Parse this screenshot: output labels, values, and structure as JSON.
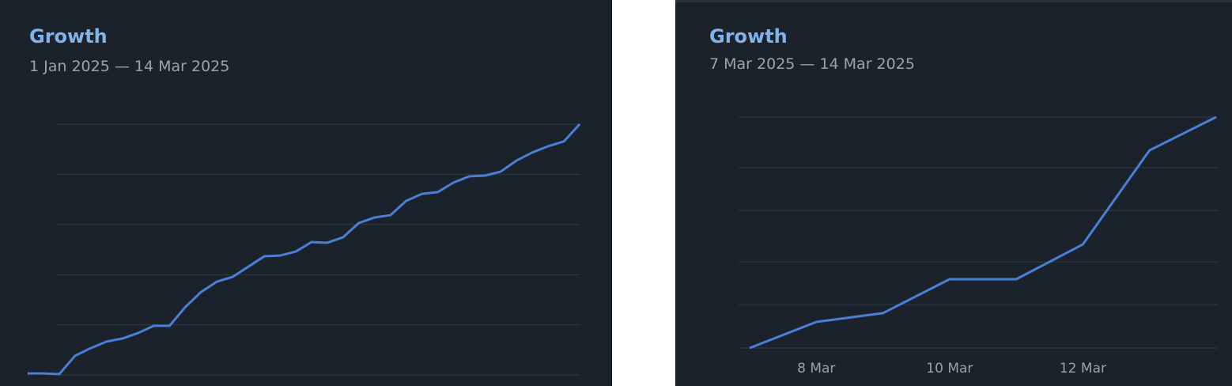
{
  "chart_data": [
    {
      "type": "line",
      "title": "Growth",
      "subtitle": "1 Jan 2025 — 14 Mar 2025",
      "values": [
        0.6,
        0.6,
        0.3,
        7.6,
        10.7,
        13.3,
        14.5,
        16.7,
        19.6,
        19.6,
        27.1,
        33.1,
        37.2,
        39.1,
        43.2,
        47.3,
        47.6,
        49.2,
        53.0,
        52.7,
        54.9,
        60.6,
        62.8,
        63.7,
        69.4,
        72.2,
        72.9,
        76.7,
        79.2,
        79.5,
        81.1,
        85.5,
        88.7,
        91.2,
        93.1,
        100
      ],
      "color": "#4a7fd6",
      "ylim": [
        0,
        100
      ],
      "yticks": [
        0,
        20,
        40,
        60,
        80,
        100
      ],
      "grid": true
    },
    {
      "type": "line",
      "title": "Growth",
      "subtitle": "7 Mar 2025 — 14 Mar 2025",
      "categories": [
        null,
        "8 Mar",
        null,
        "10 Mar",
        null,
        "12 Mar",
        null,
        null
      ],
      "values": [
        0,
        11.3,
        15.1,
        29.8,
        29.8,
        44.9,
        85.6,
        100
      ],
      "color": "#4a7fd6",
      "ylim": [
        0,
        100
      ],
      "yticks": [
        0,
        18.8,
        37.3,
        59.6,
        78.1,
        100
      ],
      "grid": true
    }
  ]
}
